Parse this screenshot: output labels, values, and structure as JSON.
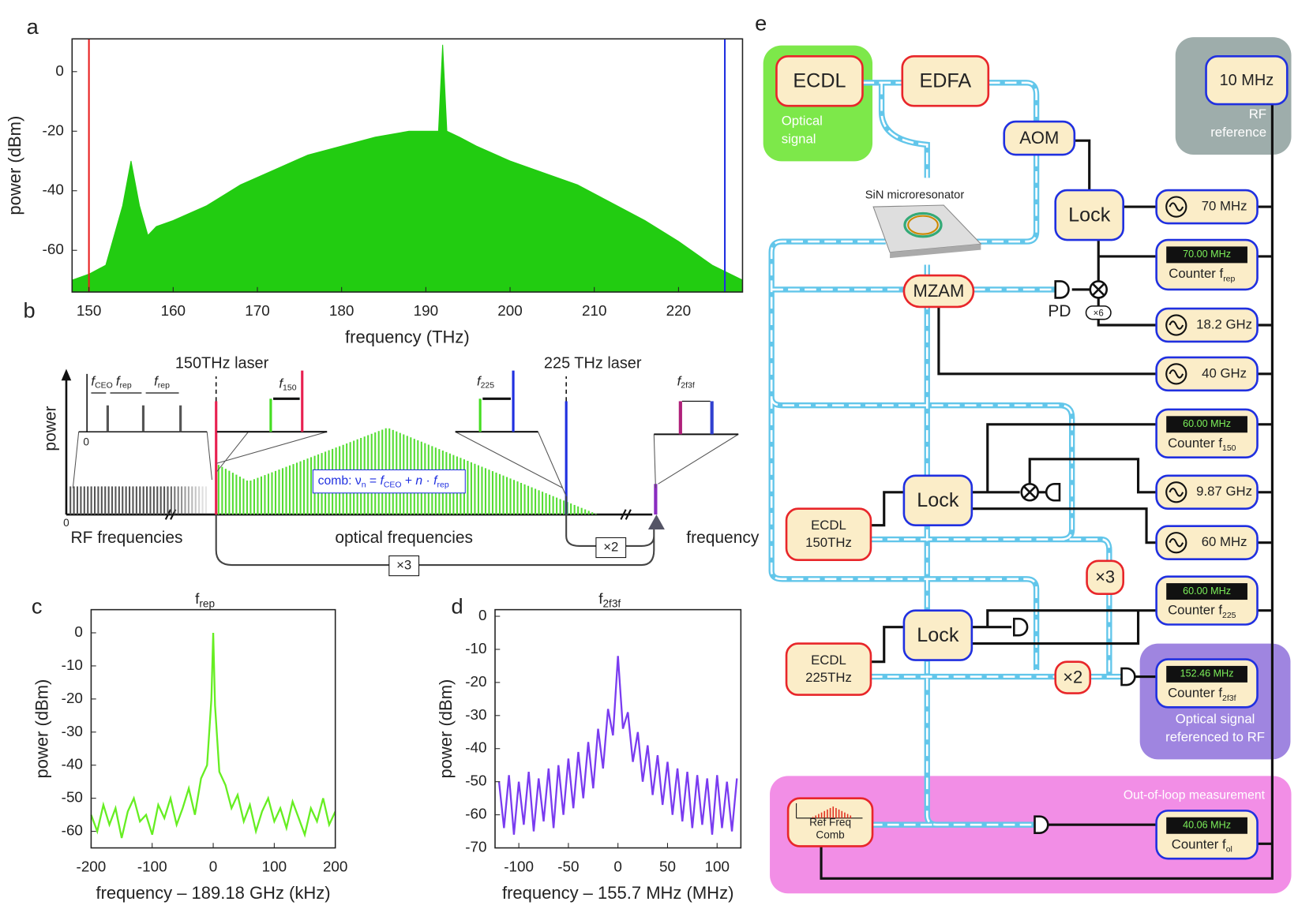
{
  "panel_labels": [
    "a",
    "b",
    "c",
    "d",
    "e"
  ],
  "chart_data": [
    {
      "type": "area",
      "xlabel": "frequency (THz)",
      "ylabel": "power (dBm)",
      "color": "#22cc11",
      "x": [
        148,
        150,
        152,
        153,
        154,
        155,
        156,
        157,
        158,
        160,
        164,
        168,
        172,
        176,
        180,
        184,
        188,
        191.5,
        192,
        192.5,
        194,
        196,
        200,
        204,
        208,
        212,
        216,
        220,
        224,
        227.6
      ],
      "values": [
        -70,
        -68,
        -65,
        -55,
        -45,
        -30,
        -45,
        -55,
        -52,
        -50,
        -45,
        -38,
        -33,
        -28,
        -25,
        -22,
        -20,
        -20,
        9,
        -20,
        -22,
        -25,
        -30,
        -34,
        -38,
        -44,
        -50,
        -57,
        -65,
        -70
      ],
      "markers": [
        {
          "x": 150,
          "color": "#e82020"
        },
        {
          "x": 225.5,
          "color": "#2030e0"
        }
      ],
      "xlim": [
        148,
        227.6
      ],
      "ylim": [
        -74,
        11
      ],
      "xticks": [
        150,
        160,
        170,
        180,
        190,
        200,
        210,
        220
      ],
      "yticks": [
        -60,
        -40,
        -20,
        0
      ]
    },
    {
      "type": "line",
      "title": "f",
      "title_sub": "rep",
      "xlabel": "frequency – 189.18 GHz (kHz)",
      "ylabel": "power (dBm)",
      "color": "#66ee22",
      "x": [
        -200,
        -190,
        -180,
        -170,
        -160,
        -150,
        -140,
        -130,
        -120,
        -110,
        -100,
        -90,
        -80,
        -70,
        -60,
        -50,
        -40,
        -30,
        -20,
        -10,
        -3,
        0,
        3,
        10,
        20,
        30,
        40,
        50,
        60,
        70,
        80,
        90,
        100,
        110,
        120,
        130,
        140,
        150,
        160,
        170,
        180,
        190,
        200
      ],
      "values": [
        -55,
        -60,
        -52,
        -58,
        -53,
        -62,
        -54,
        -50,
        -57,
        -55,
        -61,
        -52,
        -56,
        -50,
        -58,
        -53,
        -47,
        -55,
        -44,
        -40,
        -20,
        0,
        -22,
        -42,
        -46,
        -53,
        -49,
        -57,
        -52,
        -60,
        -54,
        -50,
        -57,
        -53,
        -59,
        -51,
        -56,
        -61,
        -53,
        -57,
        -50,
        -58,
        -54
      ],
      "xlim": [
        -200,
        200
      ],
      "ylim": [
        -65,
        7
      ],
      "xticks": [
        -200,
        -100,
        0,
        100,
        200
      ],
      "yticks": [
        0,
        -10,
        -20,
        -30,
        -40,
        -50,
        -60
      ]
    },
    {
      "type": "line",
      "title": "f",
      "title_sub": "2f3f",
      "xlabel": "frequency – 155.7 MHz (MHz)",
      "ylabel": "power (dBm)",
      "color": "#7a3cf0",
      "x": [
        -120,
        -115,
        -110,
        -105,
        -100,
        -95,
        -90,
        -85,
        -80,
        -75,
        -70,
        -65,
        -60,
        -55,
        -50,
        -45,
        -40,
        -35,
        -30,
        -25,
        -20,
        -15,
        -10,
        -5,
        0,
        5,
        10,
        15,
        20,
        25,
        30,
        35,
        40,
        45,
        50,
        55,
        60,
        65,
        70,
        75,
        80,
        85,
        90,
        95,
        100,
        105,
        110,
        115,
        120
      ],
      "values": [
        -50,
        -64,
        -48,
        -66,
        -50,
        -63,
        -47,
        -65,
        -49,
        -62,
        -46,
        -64,
        -45,
        -60,
        -43,
        -58,
        -41,
        -55,
        -38,
        -52,
        -34,
        -46,
        -28,
        -36,
        -12,
        -34,
        -29,
        -44,
        -35,
        -50,
        -39,
        -54,
        -42,
        -57,
        -44,
        -60,
        -46,
        -62,
        -47,
        -64,
        -48,
        -63,
        -49,
        -66,
        -48,
        -64,
        -50,
        -65,
        -49
      ],
      "xlim": [
        -124,
        124
      ],
      "ylim": [
        -70,
        2
      ],
      "xticks": [
        -100,
        -50,
        0,
        50,
        100
      ],
      "yticks": [
        -70,
        -60,
        -50,
        -40,
        -30,
        -20,
        -10,
        0
      ]
    }
  ],
  "schematic_b": {
    "ylabel": "power",
    "laser150": "150THz laser",
    "laser225": "225 THz laser",
    "f": "f",
    "ceo": "CEO",
    "rep": "rep",
    "s150": "150",
    "s225": "225",
    "s2f3f": "2f3f",
    "zero_inset": "0",
    "zero_axis": "0",
    "rf": "RF frequencies",
    "optical": "optical frequencies",
    "frequency": "frequency",
    "x2": "×2",
    "x3": "×3",
    "comb": {
      "prefix": "comb:  ν",
      "n": "n",
      "eq": " = ",
      "f1": "f",
      "ceo": "CEO",
      "plus": " + ",
      "nn": "n",
      "dot": " · ",
      "f2": "f",
      "rep": "rep"
    }
  },
  "diagram_e": {
    "regions": [
      {
        "label": "Optical",
        "label2": "signal",
        "color": "#7de84a"
      },
      {
        "label": "RF",
        "label2": "reference",
        "color": "#9eadab"
      },
      {
        "label": "Optical signal",
        "label2": "referenced to RF",
        "color": "#9f85e0"
      },
      {
        "label": "Out-of-loop measurement",
        "color": "#f28ee6"
      }
    ],
    "resonator": "SiN microresonator",
    "pd": "PD",
    "x6": "×6",
    "nodes": [
      {
        "label": "ECDL",
        "border": "#e8262a"
      },
      {
        "label": "EDFA",
        "border": "#e8262a"
      },
      {
        "label": "AOM",
        "border": "#2030e0"
      },
      {
        "label": "10 MHz",
        "border": "#2030e0"
      },
      {
        "label": "Lock",
        "border": "#2030e0"
      },
      {
        "label": "70 MHz",
        "border": "#2030e0",
        "osc": true
      },
      {
        "display": "70.00 MHz",
        "label": "Counter f",
        "sub": "rep",
        "border": "#2030e0"
      },
      {
        "label": "MZAM",
        "border": "#e8262a"
      },
      {
        "label": "18.2 GHz",
        "border": "#2030e0",
        "osc": true
      },
      {
        "label": "40 GHz",
        "border": "#2030e0",
        "osc": true
      },
      {
        "display": "60.00 MHz",
        "label": "Counter f",
        "sub": "150",
        "border": "#2030e0"
      },
      {
        "label": "Lock",
        "border": "#2030e0"
      },
      {
        "label": "9.87 GHz",
        "border": "#2030e0",
        "osc": true
      },
      {
        "label": "ECDL",
        "label2": "150THz",
        "border": "#e8262a"
      },
      {
        "label": "60 MHz",
        "border": "#2030e0",
        "osc": true
      },
      {
        "label": "×3",
        "border": "#e8262a"
      },
      {
        "display": "60.00 MHz",
        "label": "Counter f",
        "sub": "225",
        "border": "#2030e0"
      },
      {
        "label": "Lock",
        "border": "#2030e0"
      },
      {
        "label": "ECDL",
        "label2": "225THz",
        "border": "#e8262a"
      },
      {
        "label": "×2",
        "border": "#e8262a"
      },
      {
        "display": "152.46 MHz",
        "label": "Counter f",
        "sub": "2f3f",
        "border": "#2030e0"
      },
      {
        "label": "Ref Freq",
        "label2": "Comb",
        "border": "#e8262a"
      },
      {
        "display": "40.06 MHz",
        "label": "Counter f",
        "sub": "ol",
        "border": "#2030e0"
      }
    ]
  }
}
